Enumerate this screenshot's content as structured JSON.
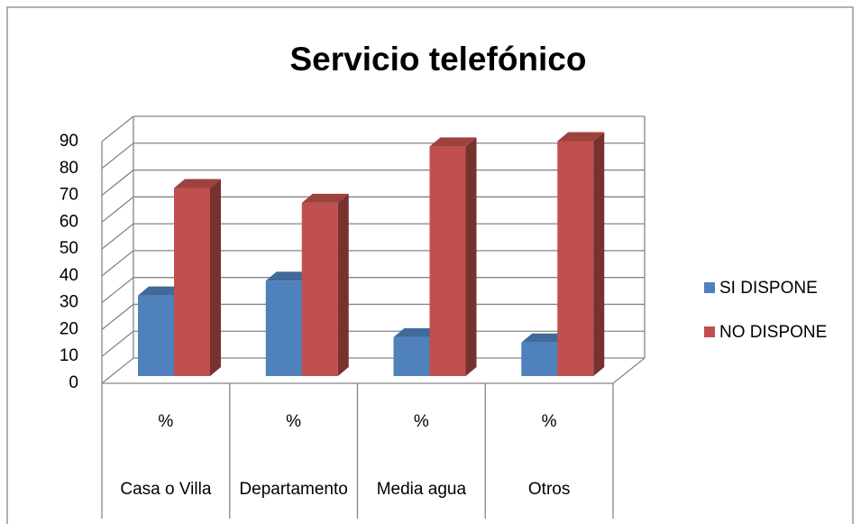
{
  "chart_data": {
    "type": "bar3d",
    "title": "Servicio telefónico",
    "categories": [
      "Casa o Villa",
      "Departamento",
      "Media agua",
      "Otros"
    ],
    "subcategories": [
      "%",
      "%",
      "%",
      "%"
    ],
    "series": [
      {
        "name": "SI DISPONE",
        "color": "#4f81bd",
        "values": [
          30,
          35.5,
          14.5,
          12.5
        ]
      },
      {
        "name": "NO DISPONE",
        "color": "#c0504d",
        "values": [
          70,
          64.5,
          85.5,
          87.5
        ]
      }
    ],
    "ylim": [
      0,
      90
    ],
    "yticks": [
      0,
      10,
      20,
      30,
      40,
      50,
      60,
      70,
      80,
      90
    ],
    "grid": true,
    "legend": "right"
  }
}
